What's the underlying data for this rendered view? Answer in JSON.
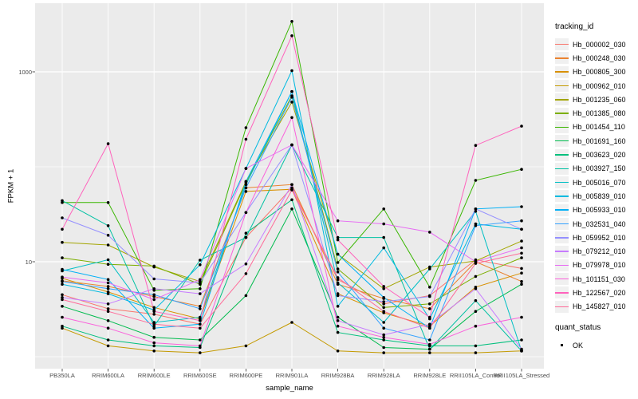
{
  "chart_data": {
    "type": "line",
    "title": "",
    "xlabel": "sample_name",
    "ylabel": "FPKM + 1",
    "y_scale": "log10",
    "ylim": [
      1,
      5000
    ],
    "grid": true,
    "legend_position": "right",
    "legend_title": "tracking_id",
    "point_marker": "black-dot",
    "point_color": "#000000",
    "panel_bg": "#EBEBEB",
    "grid_color": "#FFFFFF",
    "tick_text_color": "#4D4D4D",
    "y_ticks": [
      {
        "v": 1000,
        "label": "1000"
      },
      {
        "v": 10,
        "label": "10"
      }
    ],
    "y_minor": [
      100,
      1
    ],
    "categories": [
      "PB350LA",
      "RRIM600LA",
      "RRIM600LE",
      "RRIM600SE",
      "RRIM600PE",
      "RRIM901LA",
      "RRIM928BA",
      "RRIM928LA",
      "RRIM928LE",
      "RRII105LA_Control",
      "RRII105LA_Stressed"
    ],
    "series": [
      {
        "name": "Hb_000002_030",
        "color": "#F8766D",
        "values": [
          4.5,
          3.2,
          2.8,
          2.2,
          18,
          60,
          6.5,
          3.6,
          4.4,
          10.5,
          8.5
        ]
      },
      {
        "name": "Hb_000248_030",
        "color": "#EA8331",
        "values": [
          6.3,
          5.5,
          4.3,
          3.4,
          60,
          65,
          5.8,
          4.1,
          3.2,
          10,
          6.2
        ]
      },
      {
        "name": "Hb_000805_300",
        "color": "#D89000",
        "values": [
          6.7,
          4.8,
          3.3,
          2.5,
          55,
          58,
          4.6,
          2.9,
          2.1,
          5.4,
          7.6
        ]
      },
      {
        "name": "Hb_000962_010",
        "color": "#C49A00",
        "values": [
          2.0,
          1.3,
          1.15,
          1.1,
          1.3,
          2.3,
          1.15,
          1.1,
          1.1,
          1.1,
          1.15
        ]
      },
      {
        "name": "Hb_001235_060",
        "color": "#A3A500",
        "values": [
          16,
          15,
          8.8,
          6.2,
          70,
          480,
          12,
          5.2,
          8.8,
          10.2,
          16.5
        ]
      },
      {
        "name": "Hb_001385_080",
        "color": "#7CAE00",
        "values": [
          11,
          9.4,
          9.0,
          5.8,
          68,
          560,
          8.4,
          3.3,
          3.6,
          7.0,
          11
        ]
      },
      {
        "name": "Hb_001454_110",
        "color": "#39B600",
        "values": [
          42,
          42,
          5.0,
          5.2,
          258,
          3400,
          9.8,
          36,
          5.4,
          72,
          94
        ]
      },
      {
        "name": "Hb_001691_160",
        "color": "#00BB4E",
        "values": [
          3.4,
          2.4,
          1.6,
          1.5,
          4.4,
          36,
          2.6,
          1.25,
          1.2,
          3.0,
          5.8
        ]
      },
      {
        "name": "Hb_003623_020",
        "color": "#00BF7D",
        "values": [
          2.1,
          1.5,
          1.3,
          1.25,
          20,
          45,
          1.8,
          1.5,
          1.3,
          1.3,
          1.5
        ]
      },
      {
        "name": "Hb_003927_150",
        "color": "#00C1A3",
        "values": [
          44,
          24,
          2.1,
          10.4,
          18,
          170,
          18,
          18,
          1.2,
          3.9,
          1.15
        ]
      },
      {
        "name": "Hb_005016_070",
        "color": "#00BFC4",
        "values": [
          8.0,
          10.5,
          2.3,
          2.6,
          65,
          620,
          6.0,
          2.3,
          8.4,
          34,
          1.15
        ]
      },
      {
        "name": "Hb_005839_010",
        "color": "#00BAE0",
        "values": [
          5.8,
          4.6,
          3.1,
          9.3,
          96,
          1030,
          3.4,
          14,
          2.5,
          25,
          22
        ]
      },
      {
        "name": "Hb_005933_010",
        "color": "#00B0F6",
        "values": [
          8.3,
          6.5,
          2.0,
          2.2,
          70,
          620,
          12,
          4.2,
          2.0,
          36,
          38
        ]
      },
      {
        "name": "Hb_032531_040",
        "color": "#35A2FF",
        "values": [
          6.2,
          5.2,
          4.5,
          3.2,
          60,
          540,
          7.8,
          2.0,
          1.5,
          24,
          27
        ]
      },
      {
        "name": "Hb_059952_010",
        "color": "#9590FF",
        "values": [
          29,
          19,
          6.6,
          6.0,
          33,
          170,
          4.4,
          3.8,
          4.3,
          36,
          22
        ]
      },
      {
        "name": "Hb_079212_010",
        "color": "#C77CFF",
        "values": [
          4.2,
          3.6,
          5.2,
          4.6,
          9.5,
          65,
          2.4,
          1.7,
          2.2,
          5.2,
          1.2
        ]
      },
      {
        "name": "Hb_079978_010",
        "color": "#E76BF3",
        "values": [
          6.9,
          6.0,
          4.0,
          6.5,
          96,
          170,
          27,
          25,
          20.5,
          10,
          14
        ]
      },
      {
        "name": "Hb_101151_030",
        "color": "#FA62DB",
        "values": [
          2.6,
          2.0,
          1.4,
          1.3,
          33,
          330,
          2.1,
          1.6,
          1.35,
          2.1,
          2.6
        ]
      },
      {
        "name": "Hb_122567_020",
        "color": "#FF62BC",
        "values": [
          22,
          175,
          3.0,
          2.4,
          195,
          2400,
          17,
          5.5,
          2.6,
          168,
          268
        ]
      },
      {
        "name": "Hb_145827_010",
        "color": "#FF6A98",
        "values": [
          4.0,
          3.0,
          2.2,
          2.0,
          7.5,
          57,
          6.8,
          3.0,
          2.0,
          9.6,
          12.3
        ]
      }
    ],
    "quant_status": {
      "title": "quant_status",
      "items": [
        "OK"
      ]
    }
  }
}
